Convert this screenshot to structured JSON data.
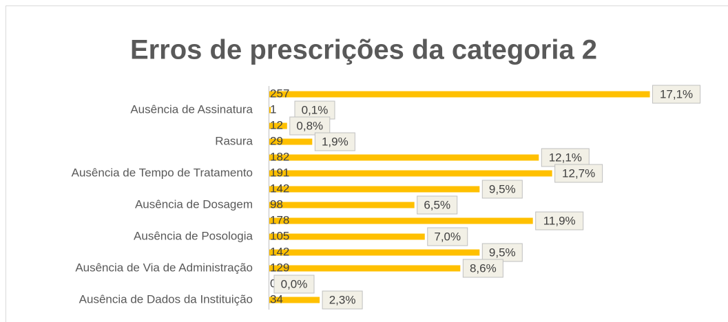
{
  "chart_data": {
    "type": "bar",
    "orientation": "horizontal",
    "title": "Erros de prescrições da categoria 2",
    "categories": [
      null,
      "Ausência de Assinatura",
      null,
      "Rasura",
      null,
      "Ausência de Tempo de Tratamento",
      null,
      "Ausência de Dosagem",
      null,
      "Ausência de Posologia",
      null,
      "Ausência de Via de Administração",
      null,
      "Ausência de Dados da Instituição"
    ],
    "values": [
      257,
      1,
      12,
      29,
      182,
      191,
      142,
      98,
      178,
      105,
      142,
      129,
      0,
      34
    ],
    "share_labels": [
      "17,1%",
      "0,1%",
      "0,8%",
      "1,9%",
      "12,1%",
      "12,7%",
      "9,5%",
      "6,5%",
      "11,9%",
      "7,0%",
      "9,5%",
      "8,6%",
      "0,0%",
      "2,3%"
    ],
    "color": "#ffc000",
    "xlim": [
      0,
      260
    ]
  }
}
